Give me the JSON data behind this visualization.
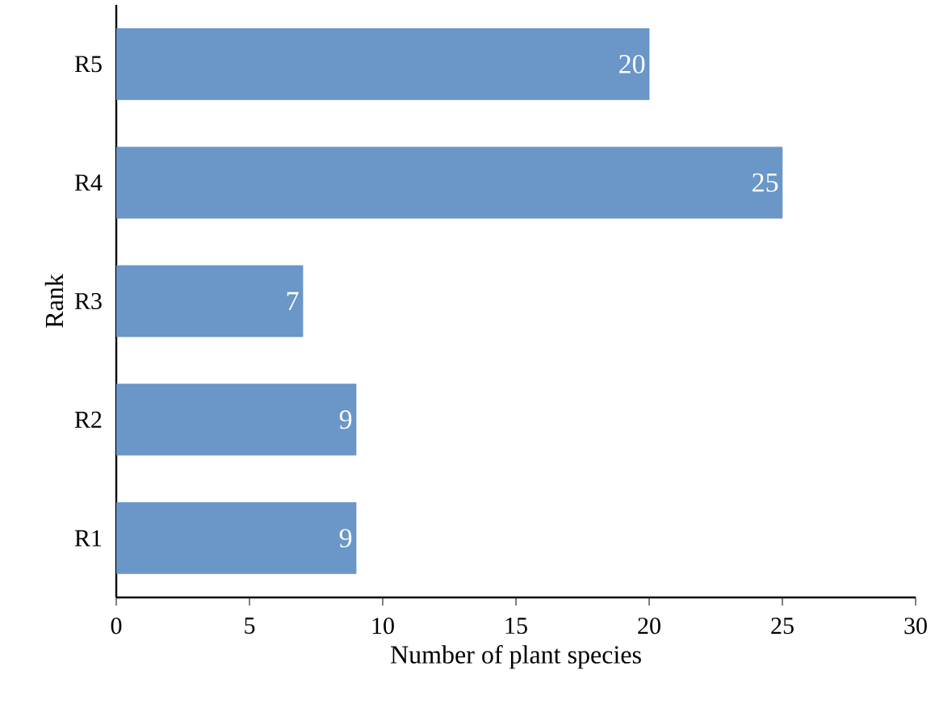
{
  "chart_data": {
    "type": "bar",
    "orientation": "horizontal",
    "xlabel": "Number of plant species",
    "ylabel": "Rank",
    "categories": [
      "R5",
      "R4",
      "R3",
      "R2",
      "R1"
    ],
    "values": [
      20,
      25,
      7,
      9,
      9
    ],
    "color": "#6a96c8",
    "xlim": [
      0,
      30
    ],
    "xticks": [
      0,
      5,
      10,
      15,
      20,
      25,
      30
    ],
    "data_labels": true
  }
}
